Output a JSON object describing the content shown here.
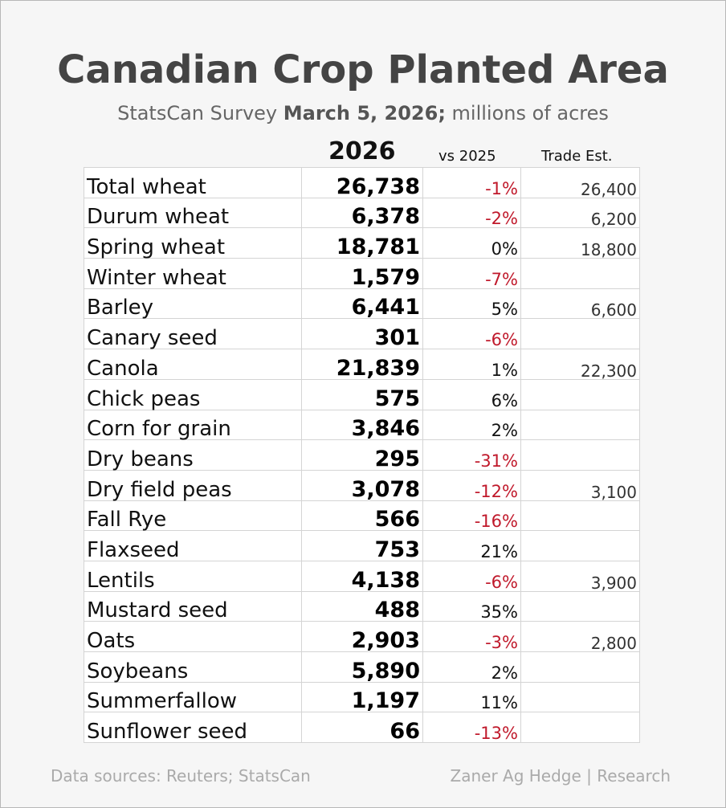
{
  "header": {
    "title": "Canadian Crop Planted Area",
    "subtitle_prefix": "StatsCan Survey ",
    "subtitle_date": "March 5, 2026;",
    "subtitle_suffix": " millions of acres"
  },
  "columns": {
    "year": "2026",
    "vs": "vs 2025",
    "trade": "Trade Est."
  },
  "colors": {
    "negative": "#c0192b",
    "positive": "#111111"
  },
  "chart_data": {
    "type": "table",
    "title": "Canadian Crop Planted Area",
    "columns": [
      "",
      "2026",
      "vs 2025",
      "Trade Est."
    ],
    "rows": [
      {
        "crop": "Total wheat",
        "value": "26,738",
        "change": "-1%",
        "trade": "26,400"
      },
      {
        "crop": "Durum wheat",
        "value": "6,378",
        "change": "-2%",
        "trade": "6,200"
      },
      {
        "crop": "Spring wheat",
        "value": "18,781",
        "change": "0%",
        "trade": "18,800"
      },
      {
        "crop": "Winter wheat",
        "value": "1,579",
        "change": "-7%",
        "trade": ""
      },
      {
        "crop": "Barley",
        "value": "6,441",
        "change": "5%",
        "trade": "6,600"
      },
      {
        "crop": "Canary seed",
        "value": "301",
        "change": "-6%",
        "trade": ""
      },
      {
        "crop": "Canola",
        "value": "21,839",
        "change": "1%",
        "trade": "22,300"
      },
      {
        "crop": "Chick peas",
        "value": "575",
        "change": "6%",
        "trade": ""
      },
      {
        "crop": "Corn for grain",
        "value": "3,846",
        "change": "2%",
        "trade": ""
      },
      {
        "crop": "Dry beans",
        "value": "295",
        "change": "-31%",
        "trade": ""
      },
      {
        "crop": "Dry field peas",
        "value": "3,078",
        "change": "-12%",
        "trade": "3,100"
      },
      {
        "crop": "Fall Rye",
        "value": "566",
        "change": "-16%",
        "trade": ""
      },
      {
        "crop": "Flaxseed",
        "value": "753",
        "change": "21%",
        "trade": ""
      },
      {
        "crop": "Lentils",
        "value": "4,138",
        "change": "-6%",
        "trade": "3,900"
      },
      {
        "crop": "Mustard seed",
        "value": "488",
        "change": "35%",
        "trade": ""
      },
      {
        "crop": "Oats",
        "value": "2,903",
        "change": "-3%",
        "trade": "2,800"
      },
      {
        "crop": "Soybeans",
        "value": "5,890",
        "change": "2%",
        "trade": ""
      },
      {
        "crop": "Summerfallow",
        "value": "1,197",
        "change": "11%",
        "trade": ""
      },
      {
        "crop": "Sunflower seed",
        "value": "66",
        "change": "-13%",
        "trade": ""
      }
    ]
  },
  "footer": {
    "sources": "Data sources: Reuters; StatsCan",
    "credit": "Zaner Ag Hedge | Research"
  }
}
